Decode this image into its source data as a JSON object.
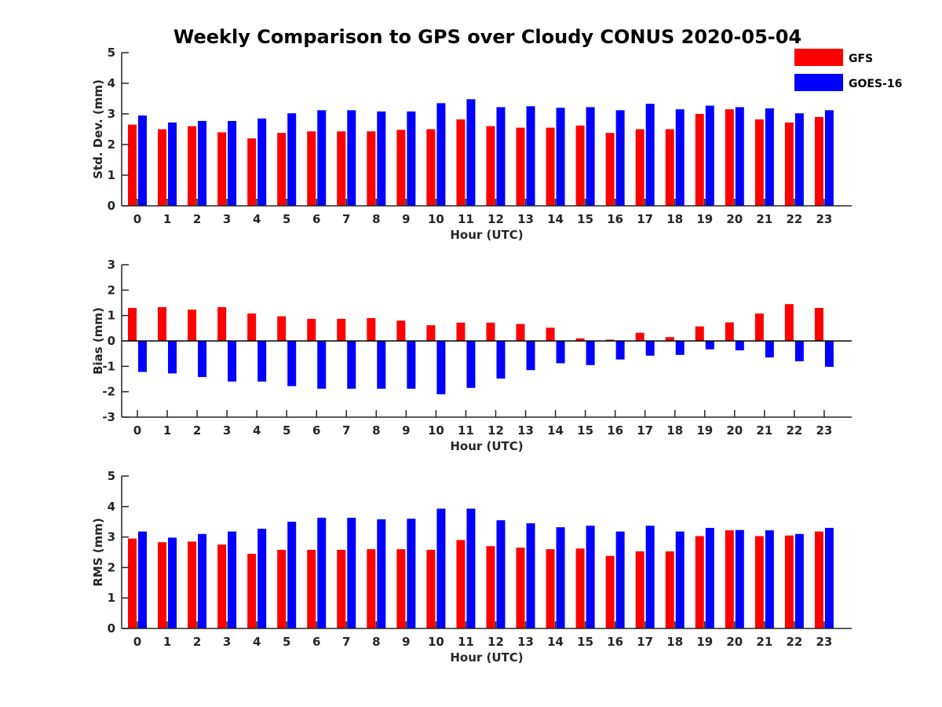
{
  "title": "Weekly Comparison to GPS over Cloudy CONUS 2020-05-04",
  "colors": {
    "GFS": "#ff0000",
    "GOES-16": "#0000ff",
    "axis": "#262626"
  },
  "legend": {
    "placement": "top-right",
    "entries": [
      "GFS",
      "GOES-16"
    ]
  },
  "chart_data": [
    {
      "type": "bar",
      "ylabel": "Std. Dev. (mm)",
      "xlabel": "Hour (UTC)",
      "ylim": [
        0,
        5
      ],
      "yticks": [
        0,
        1,
        2,
        3,
        4,
        5
      ],
      "categories": [
        "0",
        "1",
        "2",
        "3",
        "4",
        "5",
        "6",
        "7",
        "8",
        "9",
        "10",
        "11",
        "12",
        "13",
        "14",
        "15",
        "16",
        "17",
        "18",
        "19",
        "20",
        "21",
        "22",
        "23"
      ],
      "series": [
        {
          "name": "GFS",
          "values": [
            2.65,
            2.5,
            2.6,
            2.4,
            2.2,
            2.38,
            2.43,
            2.43,
            2.43,
            2.48,
            2.5,
            2.82,
            2.6,
            2.55,
            2.55,
            2.62,
            2.38,
            2.5,
            2.5,
            3.0,
            3.15,
            2.82,
            2.72,
            2.9
          ]
        },
        {
          "name": "GOES-16",
          "values": [
            2.95,
            2.72,
            2.77,
            2.77,
            2.85,
            3.02,
            3.12,
            3.12,
            3.08,
            3.08,
            3.35,
            3.48,
            3.22,
            3.25,
            3.2,
            3.22,
            3.12,
            3.33,
            3.15,
            3.27,
            3.22,
            3.18,
            3.02,
            3.12
          ]
        }
      ]
    },
    {
      "type": "bar",
      "ylabel": "Bias (mm)",
      "xlabel": "Hour (UTC)",
      "ylim": [
        -3,
        3
      ],
      "yticks": [
        -3,
        -2,
        -1,
        0,
        1,
        2,
        3
      ],
      "categories": [
        "0",
        "1",
        "2",
        "3",
        "4",
        "5",
        "6",
        "7",
        "8",
        "9",
        "10",
        "11",
        "12",
        "13",
        "14",
        "15",
        "16",
        "17",
        "18",
        "19",
        "20",
        "21",
        "22",
        "23"
      ],
      "series": [
        {
          "name": "GFS",
          "values": [
            1.3,
            1.33,
            1.23,
            1.33,
            1.08,
            0.97,
            0.87,
            0.87,
            0.9,
            0.8,
            0.62,
            0.72,
            0.72,
            0.67,
            0.52,
            0.1,
            0.05,
            0.32,
            0.15,
            0.57,
            0.73,
            1.08,
            1.45,
            1.3
          ]
        },
        {
          "name": "GOES-16",
          "values": [
            -1.22,
            -1.28,
            -1.42,
            -1.6,
            -1.6,
            -1.78,
            -1.88,
            -1.88,
            -1.88,
            -1.88,
            -2.1,
            -1.85,
            -1.48,
            -1.15,
            -0.88,
            -0.95,
            -0.73,
            -0.58,
            -0.55,
            -0.33,
            -0.37,
            -0.65,
            -0.8,
            -1.02
          ]
        }
      ]
    },
    {
      "type": "bar",
      "ylabel": "RMS (mm)",
      "xlabel": "Hour (UTC)",
      "ylim": [
        0,
        5
      ],
      "yticks": [
        0,
        1,
        2,
        3,
        4,
        5
      ],
      "categories": [
        "0",
        "1",
        "2",
        "3",
        "4",
        "5",
        "6",
        "7",
        "8",
        "9",
        "10",
        "11",
        "12",
        "13",
        "14",
        "15",
        "16",
        "17",
        "18",
        "19",
        "20",
        "21",
        "22",
        "23"
      ],
      "series": [
        {
          "name": "GFS",
          "values": [
            2.95,
            2.83,
            2.85,
            2.75,
            2.45,
            2.58,
            2.58,
            2.58,
            2.6,
            2.6,
            2.58,
            2.9,
            2.7,
            2.65,
            2.6,
            2.62,
            2.38,
            2.53,
            2.53,
            3.03,
            3.22,
            3.03,
            3.05,
            3.18
          ]
        },
        {
          "name": "GOES-16",
          "values": [
            3.18,
            2.98,
            3.1,
            3.18,
            3.27,
            3.5,
            3.63,
            3.63,
            3.58,
            3.6,
            3.93,
            3.93,
            3.55,
            3.45,
            3.32,
            3.37,
            3.18,
            3.37,
            3.18,
            3.3,
            3.23,
            3.22,
            3.1,
            3.3
          ]
        }
      ]
    }
  ]
}
